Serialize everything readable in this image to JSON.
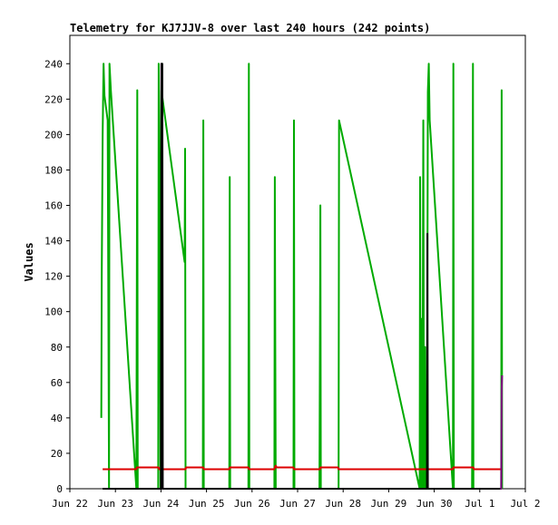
{
  "chart_data": {
    "type": "line",
    "title": "Telemetry for KJ7JJV-8 over last 240 hours (242 points)",
    "ylabel": "Values",
    "xlabel": "",
    "x_tick_labels": [
      "Jun 22",
      "Jun 23",
      "Jun 24",
      "Jun 25",
      "Jun 26",
      "Jun 27",
      "Jun 28",
      "Jun 29",
      "Jun 30",
      "Jul 1",
      "Jul 2"
    ],
    "y_tick_labels": [
      "0",
      "20",
      "40",
      "60",
      "80",
      "100",
      "120",
      "140",
      "160",
      "180",
      "200",
      "220",
      "240"
    ],
    "xlim": [
      0,
      10
    ],
    "ylim": [
      0,
      256
    ],
    "grid": false,
    "series": [
      {
        "color": "#00aa00",
        "points": [
          [
            0.69,
            40
          ],
          [
            0.7,
            120
          ],
          [
            0.72,
            200
          ],
          [
            0.74,
            240
          ],
          [
            0.76,
            222
          ],
          [
            0.83,
            208
          ],
          [
            0.86,
            0
          ],
          [
            0.87,
            240
          ],
          [
            0.9,
            225
          ],
          [
            1.46,
            0
          ],
          [
            1.48,
            225
          ],
          [
            1.49,
            0
          ],
          [
            1.94,
            0
          ],
          [
            1.95,
            240
          ],
          [
            1.97,
            180
          ],
          [
            1.99,
            0
          ],
          [
            2.01,
            225
          ],
          [
            2.52,
            128
          ],
          [
            2.53,
            192
          ],
          [
            2.54,
            0
          ],
          [
            2.92,
            0
          ],
          [
            2.93,
            208
          ],
          [
            2.94,
            0
          ],
          [
            3.5,
            0
          ],
          [
            3.51,
            176
          ],
          [
            3.52,
            0
          ],
          [
            3.92,
            0
          ],
          [
            3.93,
            240
          ],
          [
            3.94,
            0
          ],
          [
            4.49,
            0
          ],
          [
            4.5,
            176
          ],
          [
            4.51,
            80
          ],
          [
            4.52,
            0
          ],
          [
            4.91,
            0
          ],
          [
            4.92,
            208
          ],
          [
            4.93,
            0
          ],
          [
            5.48,
            0
          ],
          [
            5.49,
            80
          ],
          [
            5.5,
            160
          ],
          [
            5.51,
            0
          ],
          [
            5.9,
            0
          ],
          [
            5.91,
            208
          ],
          [
            7.68,
            0
          ],
          [
            7.69,
            176
          ],
          [
            7.7,
            0
          ],
          [
            7.72,
            64
          ],
          [
            7.73,
            96
          ],
          [
            7.74,
            0
          ],
          [
            7.76,
            208
          ],
          [
            7.77,
            64
          ],
          [
            7.78,
            0
          ],
          [
            7.8,
            80
          ],
          [
            7.81,
            0
          ],
          [
            7.84,
            0
          ],
          [
            7.86,
            224
          ],
          [
            7.88,
            240
          ],
          [
            7.9,
            208
          ],
          [
            8.41,
            0
          ],
          [
            8.42,
            240
          ],
          [
            8.43,
            0
          ],
          [
            8.83,
            0
          ],
          [
            8.84,
            96
          ],
          [
            8.85,
            240
          ],
          [
            8.86,
            0
          ],
          [
            9.47,
            0
          ],
          [
            9.48,
            225
          ],
          [
            9.49,
            0
          ]
        ]
      },
      {
        "color": "#dd0000",
        "points": [
          [
            0.72,
            11
          ],
          [
            1.46,
            11
          ],
          [
            1.47,
            12
          ],
          [
            1.95,
            12
          ],
          [
            1.96,
            11
          ],
          [
            2.54,
            11
          ],
          [
            2.55,
            12
          ],
          [
            2.93,
            12
          ],
          [
            2.94,
            11
          ],
          [
            3.5,
            11
          ],
          [
            3.51,
            12
          ],
          [
            3.92,
            12
          ],
          [
            3.93,
            11
          ],
          [
            4.49,
            11
          ],
          [
            4.5,
            12
          ],
          [
            4.52,
            13
          ],
          [
            4.54,
            12
          ],
          [
            4.91,
            12
          ],
          [
            4.92,
            11
          ],
          [
            5.49,
            11
          ],
          [
            5.5,
            12
          ],
          [
            5.89,
            12
          ],
          [
            5.9,
            11
          ],
          [
            8.41,
            11
          ],
          [
            8.42,
            12
          ],
          [
            8.86,
            12
          ],
          [
            8.87,
            11
          ],
          [
            9.49,
            11
          ]
        ]
      },
      {
        "color": "#000000",
        "points": [
          [
            0.72,
            0
          ],
          [
            2.0,
            0
          ],
          [
            2.01,
            240
          ],
          [
            2.02,
            0
          ],
          [
            2.03,
            240
          ],
          [
            2.04,
            0
          ],
          [
            7.84,
            0
          ],
          [
            7.85,
            144
          ],
          [
            7.86,
            0
          ],
          [
            9.45,
            0
          ]
        ]
      },
      {
        "color": "#800080",
        "points": [
          [
            9.45,
            0
          ],
          [
            9.47,
            0
          ],
          [
            9.48,
            56
          ],
          [
            9.49,
            64
          ]
        ]
      }
    ]
  }
}
